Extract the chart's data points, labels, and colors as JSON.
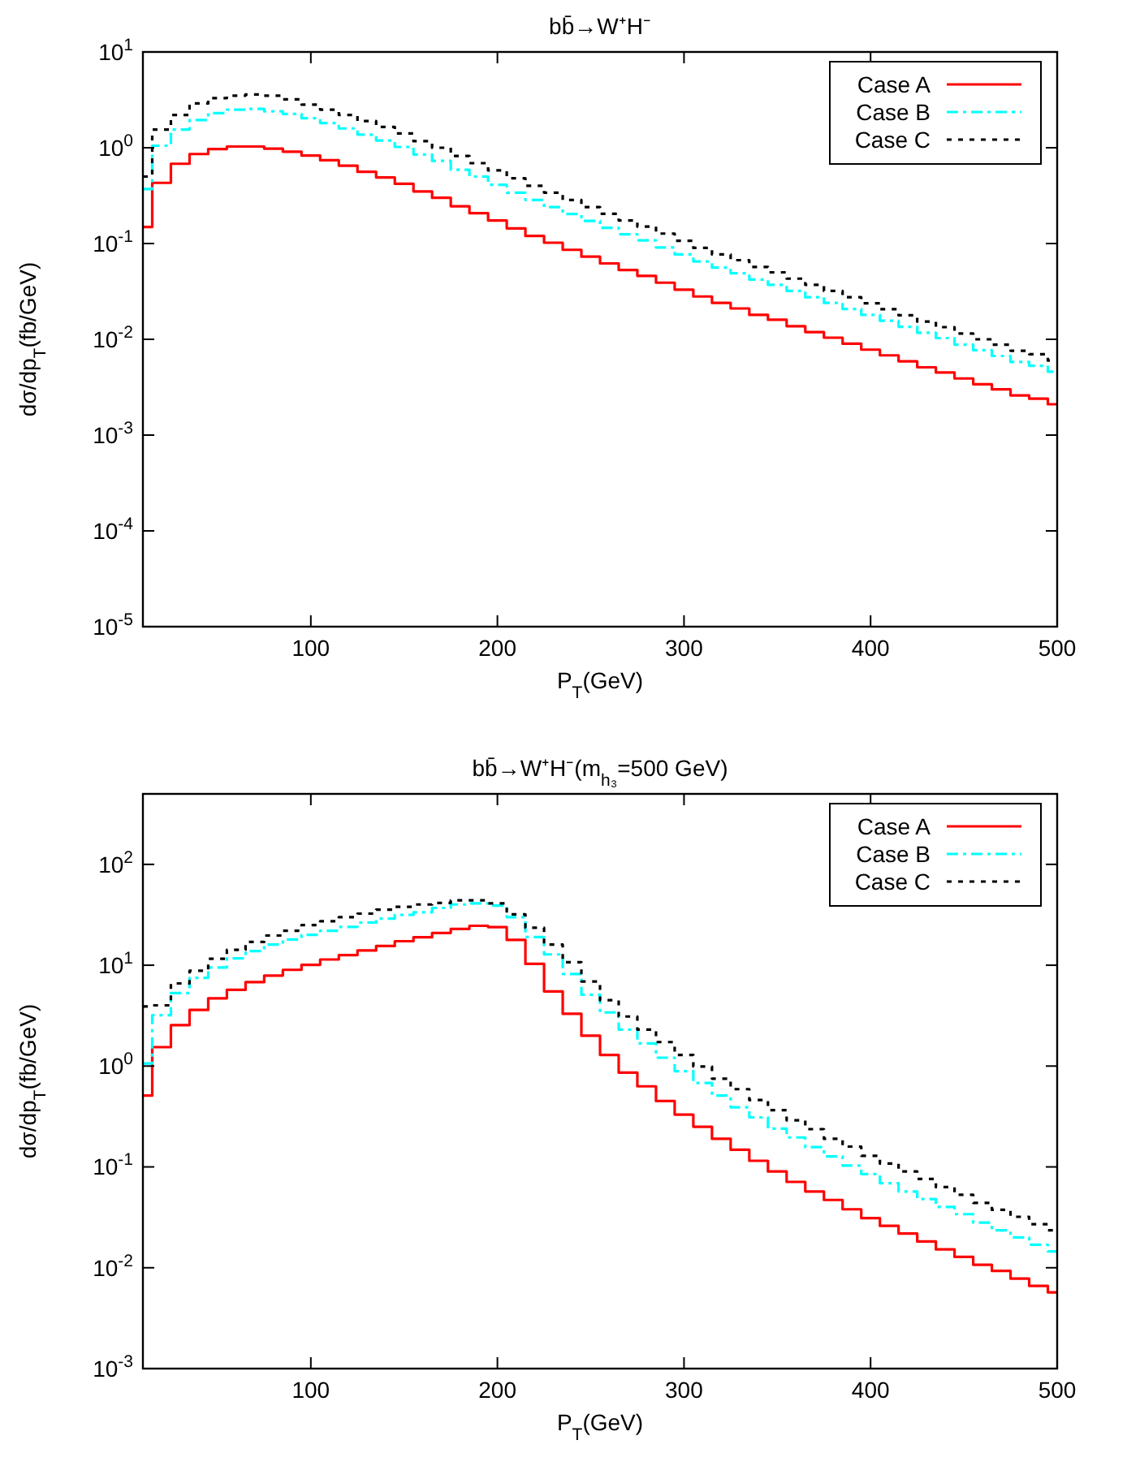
{
  "chart_data": [
    {
      "type": "step",
      "title": "bb̄→W⁺H⁻",
      "xlabel": "P$_{T}$(GeV)",
      "ylabel": "dσ/dp$_{T}$(fb/GeV)",
      "log": "y",
      "grid": false,
      "legend": "top right",
      "xlim": [
        10,
        500
      ],
      "xticks": [
        100,
        200,
        300,
        400,
        500
      ],
      "ylim": [
        1e-05,
        10
      ],
      "yticks": [
        {
          "value": 1e-05,
          "label": "10$^{-5}$"
        },
        {
          "value": 0.0001,
          "label": "10$^{-4}$"
        },
        {
          "value": 0.001,
          "label": "10$^{-3}$"
        },
        {
          "value": 0.01,
          "label": "10$^{-2}$"
        },
        {
          "value": 0.1,
          "label": "10$^{-1}$"
        },
        {
          "value": 1,
          "label": "10$^{0}$"
        },
        {
          "value": 10,
          "label": "10$^{1}$"
        }
      ],
      "x": [
        10,
        20,
        30,
        40,
        50,
        60,
        70,
        80,
        90,
        100,
        110,
        120,
        130,
        140,
        150,
        160,
        170,
        180,
        190,
        200,
        210,
        220,
        230,
        240,
        250,
        260,
        270,
        280,
        290,
        300,
        310,
        320,
        330,
        340,
        350,
        360,
        370,
        380,
        390,
        400,
        410,
        420,
        430,
        440,
        450,
        460,
        470,
        480,
        490,
        500
      ],
      "series": [
        {
          "name": "Case A",
          "color": "#ff0000",
          "line_style": "solid",
          "values": [
            0.149,
            0.43,
            0.68,
            0.86,
            0.97,
            1.03,
            1.03,
            0.98,
            0.91,
            0.83,
            0.74,
            0.65,
            0.56,
            0.49,
            0.42,
            0.35,
            0.3,
            0.245,
            0.207,
            0.174,
            0.144,
            0.12,
            0.102,
            0.086,
            0.073,
            0.062,
            0.053,
            0.046,
            0.039,
            0.033,
            0.028,
            0.024,
            0.021,
            0.018,
            0.016,
            0.0137,
            0.0119,
            0.0104,
            0.009,
            0.0078,
            0.0068,
            0.0059,
            0.0051,
            0.0045,
            0.0039,
            0.0034,
            0.003,
            0.0026,
            0.0024,
            0.0021
          ]
        },
        {
          "name": "Case B",
          "color": "#00ffff",
          "line_style": "dashed",
          "values": [
            0.37,
            1.05,
            1.55,
            1.95,
            2.3,
            2.5,
            2.55,
            2.4,
            2.25,
            2.03,
            1.81,
            1.59,
            1.37,
            1.19,
            1.02,
            0.85,
            0.73,
            0.59,
            0.5,
            0.41,
            0.34,
            0.285,
            0.24,
            0.203,
            0.172,
            0.146,
            0.125,
            0.108,
            0.091,
            0.077,
            0.065,
            0.056,
            0.049,
            0.042,
            0.037,
            0.032,
            0.0275,
            0.024,
            0.0207,
            0.018,
            0.0156,
            0.0135,
            0.0117,
            0.0103,
            0.0088,
            0.0077,
            0.0067,
            0.0058,
            0.0053,
            0.0046
          ]
        },
        {
          "name": "Case C",
          "color": "#000000",
          "line_style": "dotted",
          "values": [
            0.5,
            1.55,
            2.2,
            2.9,
            3.3,
            3.5,
            3.6,
            3.5,
            3.2,
            2.82,
            2.5,
            2.2,
            1.9,
            1.65,
            1.41,
            1.17,
            1.0,
            0.82,
            0.69,
            0.58,
            0.48,
            0.4,
            0.34,
            0.285,
            0.24,
            0.204,
            0.174,
            0.15,
            0.127,
            0.107,
            0.09,
            0.077,
            0.067,
            0.057,
            0.05,
            0.043,
            0.037,
            0.032,
            0.0275,
            0.0238,
            0.0206,
            0.0178,
            0.0153,
            0.0134,
            0.0115,
            0.01,
            0.0088,
            0.0076,
            0.007,
            0.006
          ]
        }
      ]
    },
    {
      "type": "step",
      "title": "bb̄→W⁺H⁻(m$_{h₃}$=500 GeV)",
      "xlabel": "P$_{T}$(GeV)",
      "ylabel": "dσ/dp$_{T}$(fb/GeV)",
      "log": "y",
      "grid": false,
      "legend": "top right",
      "xlim": [
        10,
        500
      ],
      "xticks": [
        100,
        200,
        300,
        400,
        500
      ],
      "ylim": [
        0.001,
        500
      ],
      "yticks": [
        {
          "value": 0.001,
          "label": "10$^{-3}$"
        },
        {
          "value": 0.01,
          "label": "10$^{-2}$"
        },
        {
          "value": 0.1,
          "label": "10$^{-1}$"
        },
        {
          "value": 1,
          "label": "10$^{0}$"
        },
        {
          "value": 10,
          "label": "10$^{1}$"
        },
        {
          "value": 100,
          "label": "10$^{2}$"
        }
      ],
      "x": [
        10,
        20,
        30,
        40,
        50,
        60,
        70,
        80,
        90,
        100,
        110,
        120,
        130,
        140,
        150,
        160,
        170,
        180,
        190,
        200,
        210,
        220,
        230,
        240,
        250,
        260,
        270,
        280,
        290,
        300,
        310,
        320,
        330,
        340,
        350,
        360,
        370,
        380,
        390,
        400,
        410,
        420,
        430,
        440,
        450,
        460,
        470,
        480,
        490,
        500
      ],
      "series": [
        {
          "name": "Case A",
          "color": "#ff0000",
          "line_style": "solid",
          "values": [
            0.51,
            1.54,
            2.55,
            3.6,
            4.7,
            5.7,
            6.8,
            7.9,
            9.0,
            10.1,
            11.4,
            12.6,
            14.0,
            15.5,
            17.3,
            18.9,
            20.9,
            22.9,
            24.6,
            23.9,
            17.8,
            10.3,
            5.5,
            3.3,
            2.0,
            1.29,
            0.86,
            0.63,
            0.45,
            0.33,
            0.25,
            0.19,
            0.148,
            0.115,
            0.09,
            0.071,
            0.057,
            0.047,
            0.038,
            0.031,
            0.026,
            0.0218,
            0.0182,
            0.0152,
            0.0128,
            0.0107,
            0.0093,
            0.0078,
            0.0066,
            0.0057
          ]
        },
        {
          "name": "Case B",
          "color": "#00ffff",
          "line_style": "dashed",
          "values": [
            1.06,
            3.2,
            5.3,
            7.5,
            9.5,
            11.7,
            13.8,
            16,
            18,
            20,
            22,
            24,
            26.5,
            29,
            31.6,
            33.5,
            37,
            40,
            41,
            39,
            30,
            19,
            12.8,
            8.2,
            5.1,
            3.4,
            2.3,
            1.68,
            1.21,
            0.89,
            0.68,
            0.51,
            0.39,
            0.31,
            0.24,
            0.196,
            0.157,
            0.127,
            0.103,
            0.085,
            0.069,
            0.057,
            0.048,
            0.04,
            0.034,
            0.028,
            0.0235,
            0.02,
            0.0169,
            0.0145
          ]
        },
        {
          "name": "Case C",
          "color": "#000000",
          "line_style": "dotted",
          "values": [
            3.9,
            4.0,
            6.6,
            8.8,
            11.6,
            14.2,
            17,
            19.7,
            22,
            25,
            27.3,
            30,
            32.5,
            35.5,
            38,
            40,
            41.5,
            44,
            44,
            41,
            32,
            23.5,
            16,
            10.7,
            6.9,
            4.5,
            3.1,
            2.3,
            1.73,
            1.29,
            0.99,
            0.75,
            0.59,
            0.46,
            0.365,
            0.29,
            0.237,
            0.19,
            0.159,
            0.129,
            0.108,
            0.09,
            0.076,
            0.063,
            0.053,
            0.044,
            0.0375,
            0.032,
            0.027,
            0.0235
          ]
        }
      ]
    }
  ]
}
